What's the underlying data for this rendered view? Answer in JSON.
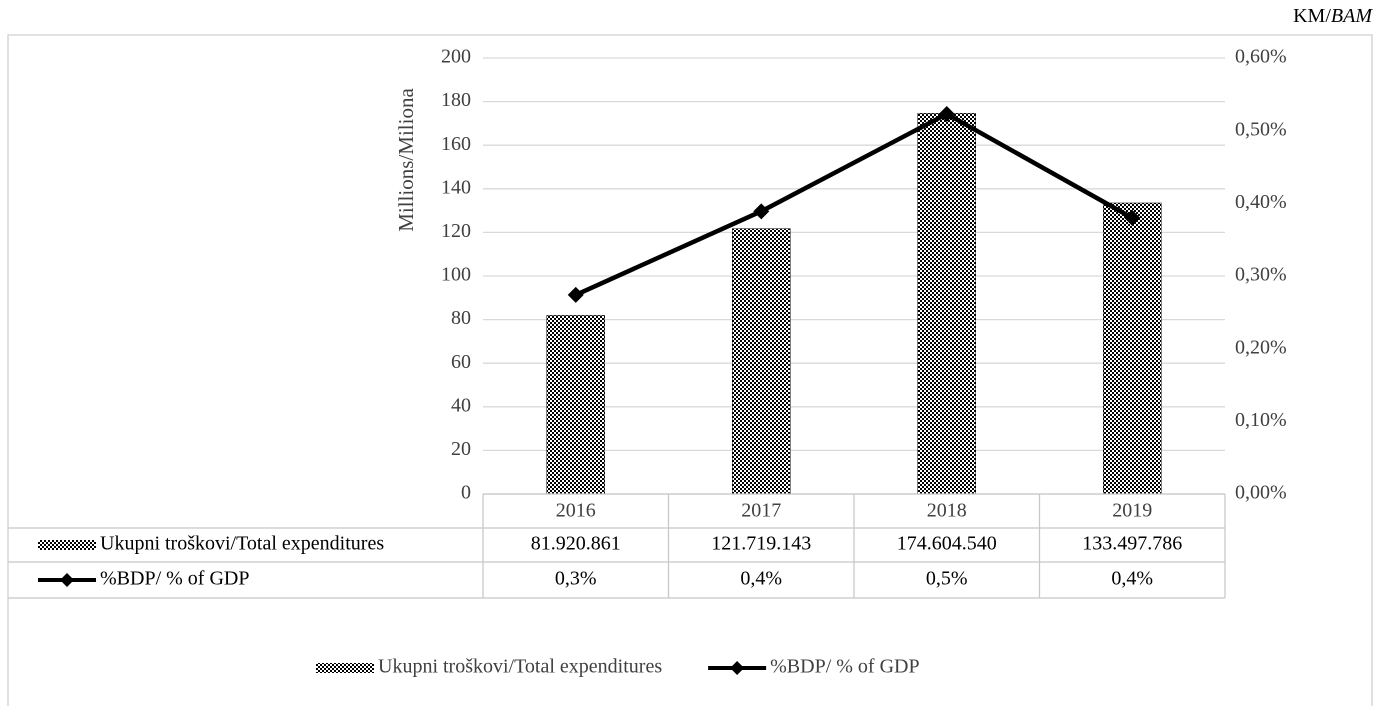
{
  "chart_data": {
    "type": "bar",
    "unit_label": "KM/",
    "unit_label_italic": "BAM",
    "ylabel": "Millions/Miliona",
    "categories": [
      "2016",
      "2017",
      "2018",
      "2019"
    ],
    "series": [
      {
        "name": "Ukupni troškovi/Total expenditures",
        "type": "bar",
        "color": "#000000",
        "values": [
          81.920861,
          121.719143,
          174.60454,
          133.497786
        ],
        "value_labels": [
          "81.920.861",
          "121.719.143",
          "174.604.540",
          "133.497.786"
        ]
      },
      {
        "name": "%BDP/ % of GDP",
        "type": "line",
        "axis": "y2",
        "color": "#000000",
        "values": [
          0.274,
          0.389,
          0.523,
          0.38
        ],
        "value_labels": [
          "0,3%",
          "0,4%",
          "0,5%",
          "0,4%"
        ]
      }
    ],
    "ylim": [
      0,
      200
    ],
    "yticks": [
      0,
      20,
      40,
      60,
      80,
      100,
      120,
      140,
      160,
      180,
      200
    ],
    "y2lim": [
      0,
      0.6
    ],
    "y2ticks": [
      {
        "value": 0,
        "label": "0,00%"
      },
      {
        "value": 0.1,
        "label": "0,10%"
      },
      {
        "value": 0.2,
        "label": "0,20%"
      },
      {
        "value": 0.3,
        "label": "0,30%"
      },
      {
        "value": 0.4,
        "label": "0,40%"
      },
      {
        "value": 0.5,
        "label": "0,50%"
      },
      {
        "value": 0.6,
        "label": "0,60%"
      }
    ],
    "grid": true,
    "legend": "bottom",
    "data_table": true
  }
}
